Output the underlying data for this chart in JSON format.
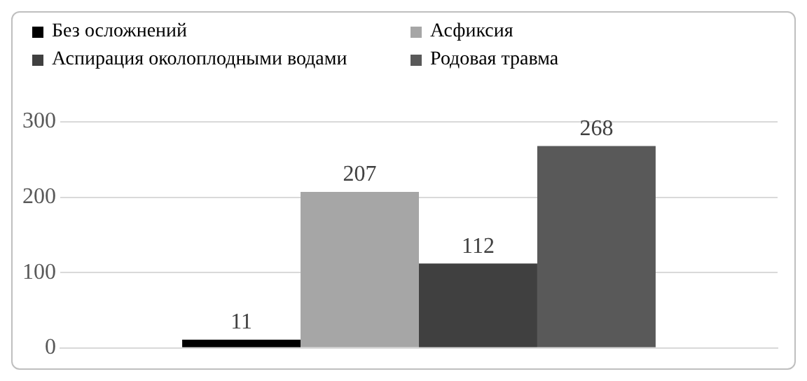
{
  "chart_data": {
    "type": "bar",
    "categories": [
      null
    ],
    "series": [
      {
        "name": "Без осложнений",
        "color": "#000000",
        "values": [
          11
        ]
      },
      {
        "name": "Асфиксия",
        "color": "#a6a6a6",
        "values": [
          207
        ]
      },
      {
        "name": "Аспирация околоплодными водами",
        "color": "#404040",
        "values": [
          112
        ]
      },
      {
        "name": "Родовая травма",
        "color": "#595959",
        "values": [
          268
        ]
      }
    ],
    "ylim": [
      0,
      300
    ],
    "yticks": [
      0,
      100,
      200,
      300
    ],
    "grid": "y",
    "legend": "top",
    "data_labels": true
  }
}
